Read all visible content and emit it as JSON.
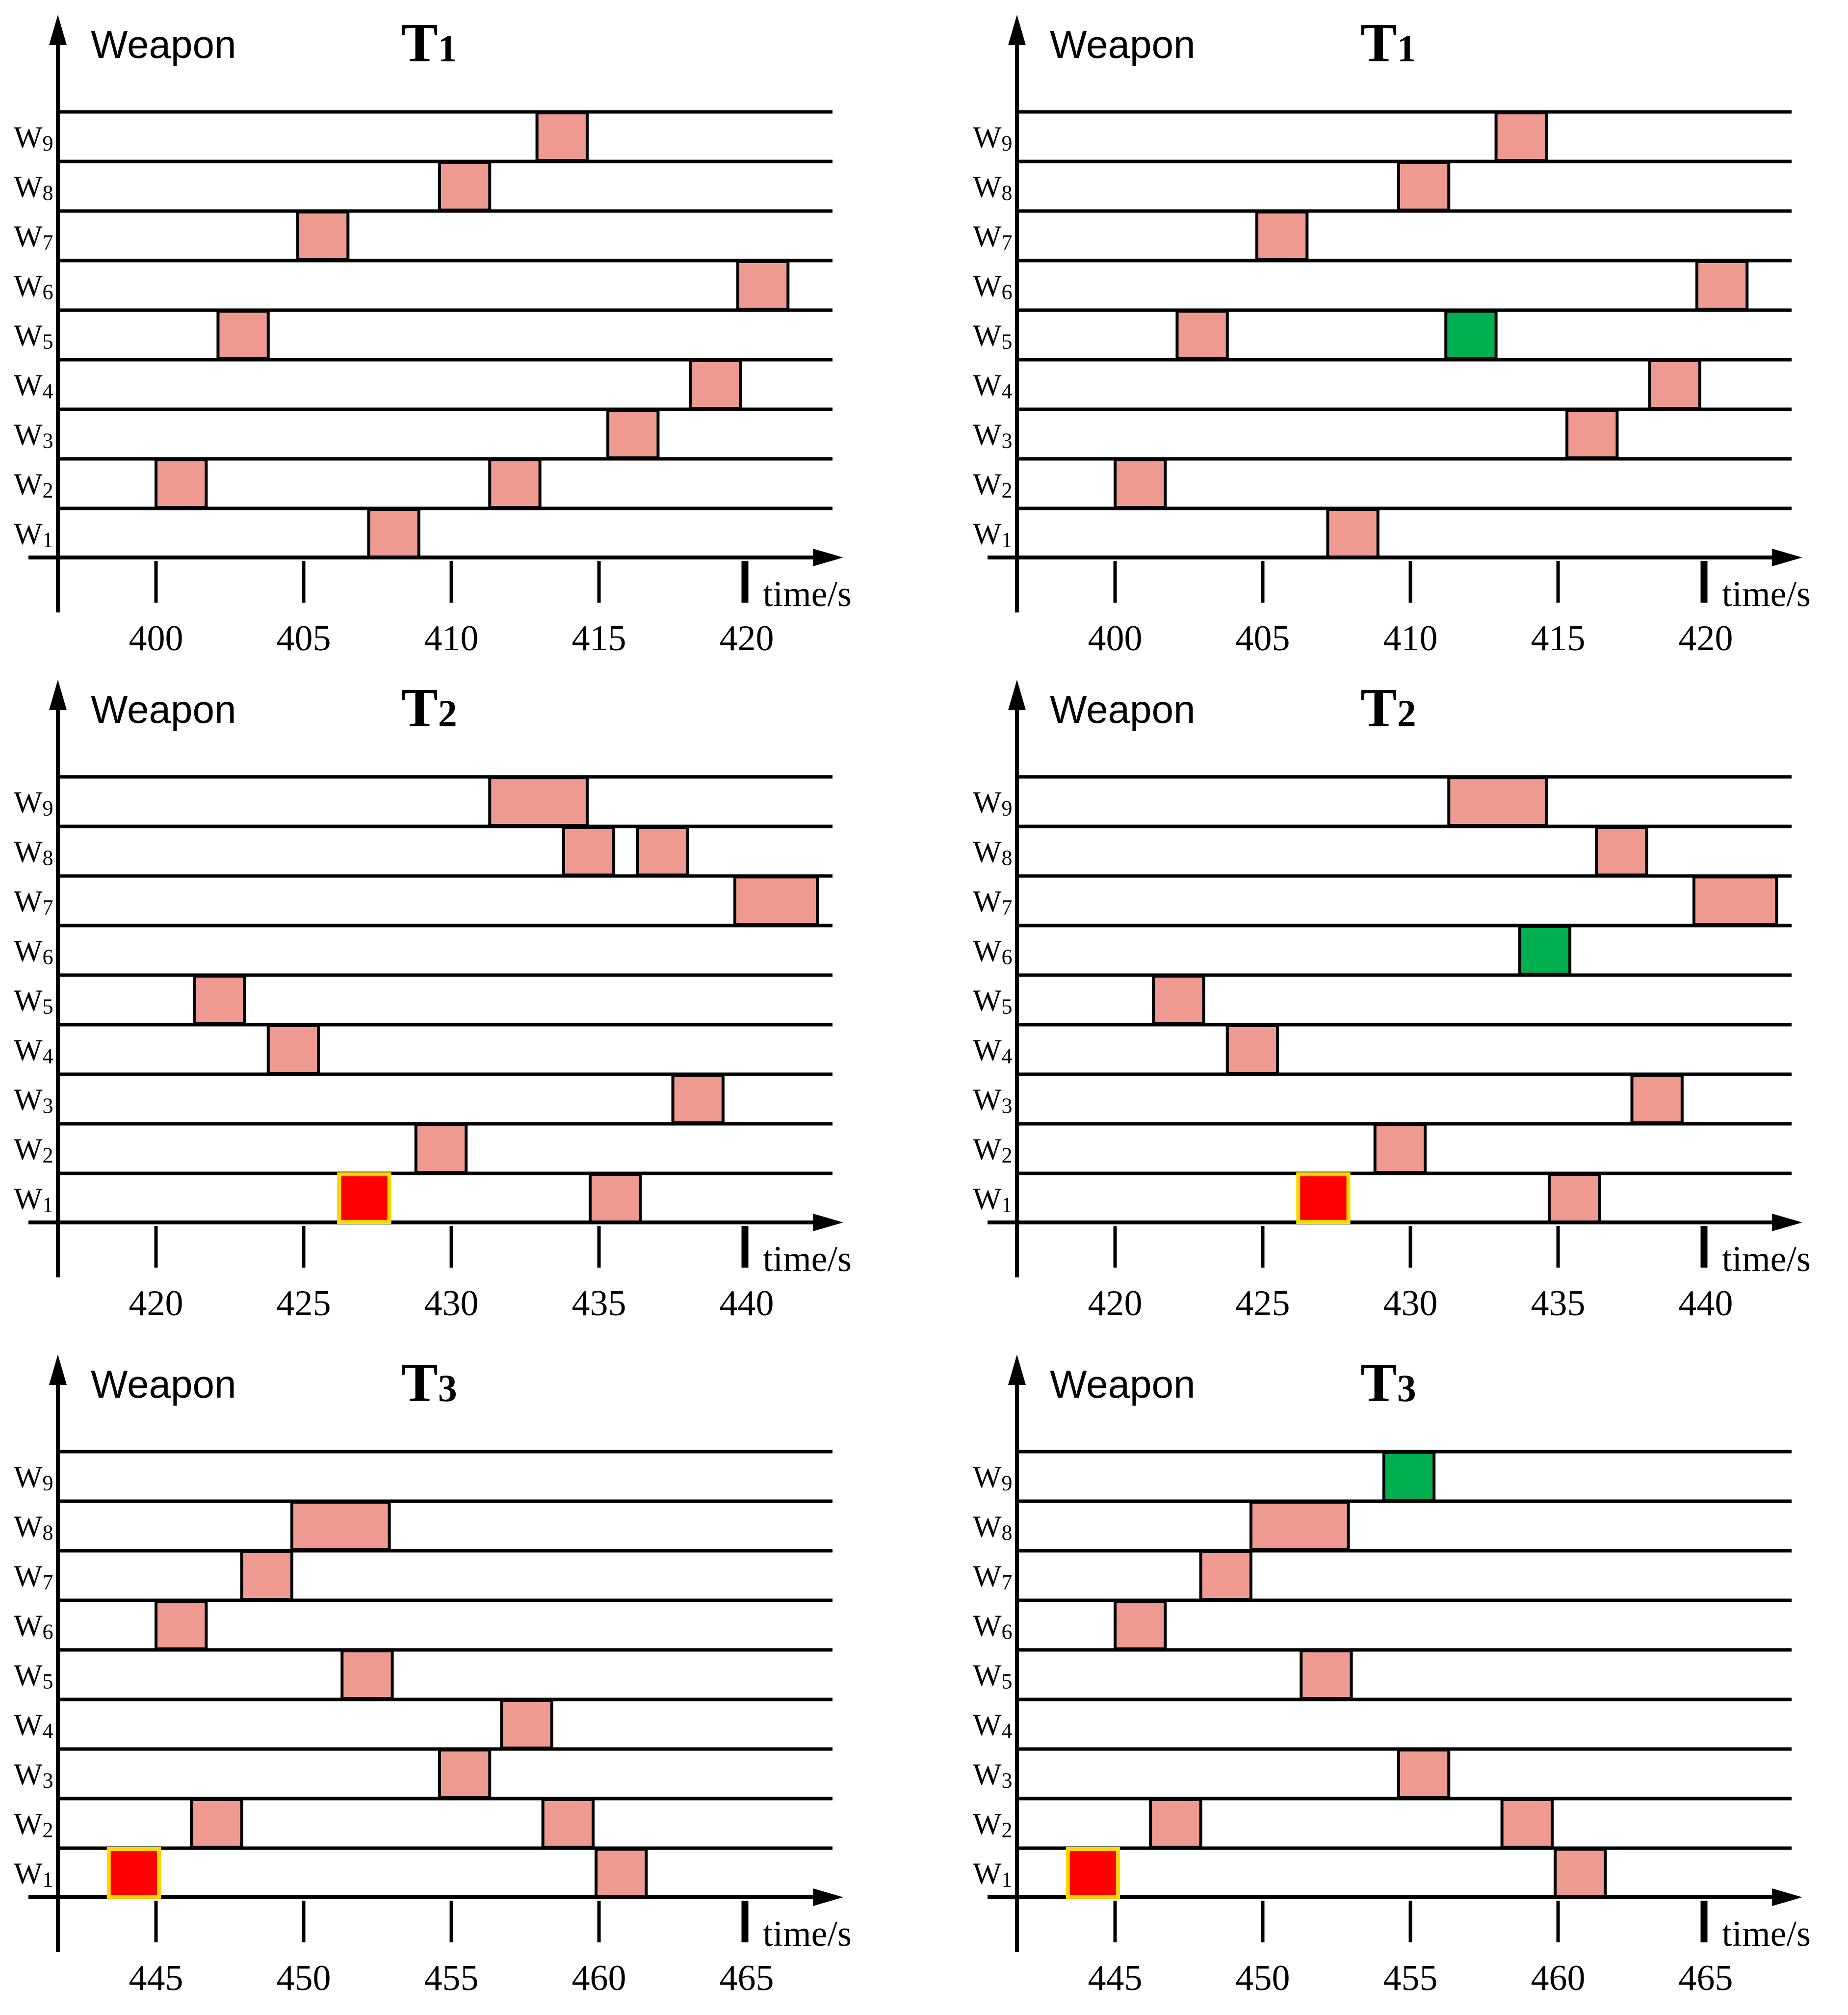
{
  "palette": {
    "task": "#ef9a90",
    "green": "#00b050",
    "red": "#ff0000",
    "red_border": "#ffd700",
    "axis": "#000000"
  },
  "chart_data": [
    {
      "type": "timeline",
      "title": "T",
      "title_sub": "1",
      "ylabel": "Weapon",
      "xlabel": "time/s",
      "x_ticks": [
        400,
        405,
        410,
        415,
        420
      ],
      "rows": [
        "W1",
        "W2",
        "W3",
        "W4",
        "W5",
        "W6",
        "W7",
        "W8",
        "W9"
      ],
      "xlim": [
        396.7,
        422.9
      ],
      "tasks": [
        {
          "row": "W1",
          "start": 407.2,
          "end": 408.9,
          "kind": "normal"
        },
        {
          "row": "W2",
          "start": 400.0,
          "end": 401.7,
          "kind": "normal"
        },
        {
          "row": "W2",
          "start": 411.3,
          "end": 413.0,
          "kind": "normal"
        },
        {
          "row": "W3",
          "start": 415.3,
          "end": 417.0,
          "kind": "normal"
        },
        {
          "row": "W4",
          "start": 418.1,
          "end": 419.8,
          "kind": "normal"
        },
        {
          "row": "W5",
          "start": 402.1,
          "end": 403.8,
          "kind": "normal"
        },
        {
          "row": "W6",
          "start": 419.7,
          "end": 421.4,
          "kind": "normal"
        },
        {
          "row": "W7",
          "start": 404.8,
          "end": 406.5,
          "kind": "normal"
        },
        {
          "row": "W8",
          "start": 409.6,
          "end": 411.3,
          "kind": "normal"
        },
        {
          "row": "W9",
          "start": 412.9,
          "end": 414.6,
          "kind": "normal"
        }
      ]
    },
    {
      "type": "timeline",
      "title": "T",
      "title_sub": "1",
      "ylabel": "Weapon",
      "xlabel": "time/s",
      "x_ticks": [
        400,
        405,
        410,
        415,
        420
      ],
      "rows": [
        "W1",
        "W2",
        "W3",
        "W4",
        "W5",
        "W6",
        "W7",
        "W8",
        "W9"
      ],
      "xlim": [
        396.7,
        422.9
      ],
      "tasks": [
        {
          "row": "W1",
          "start": 407.2,
          "end": 408.9,
          "kind": "normal"
        },
        {
          "row": "W2",
          "start": 400.0,
          "end": 401.7,
          "kind": "normal"
        },
        {
          "row": "W3",
          "start": 415.3,
          "end": 417.0,
          "kind": "normal"
        },
        {
          "row": "W4",
          "start": 418.1,
          "end": 419.8,
          "kind": "normal"
        },
        {
          "row": "W5",
          "start": 402.1,
          "end": 403.8,
          "kind": "normal"
        },
        {
          "row": "W5",
          "start": 411.2,
          "end": 412.9,
          "kind": "green"
        },
        {
          "row": "W6",
          "start": 419.7,
          "end": 421.4,
          "kind": "normal"
        },
        {
          "row": "W7",
          "start": 404.8,
          "end": 406.5,
          "kind": "normal"
        },
        {
          "row": "W8",
          "start": 409.6,
          "end": 411.3,
          "kind": "normal"
        },
        {
          "row": "W9",
          "start": 412.9,
          "end": 414.6,
          "kind": "normal"
        }
      ]
    },
    {
      "type": "timeline",
      "title": "T",
      "title_sub": "2",
      "ylabel": "Weapon",
      "xlabel": "time/s",
      "x_ticks": [
        420,
        425,
        430,
        435,
        440
      ],
      "rows": [
        "W1",
        "W2",
        "W3",
        "W4",
        "W5",
        "W6",
        "W7",
        "W8",
        "W9"
      ],
      "xlim": [
        416.7,
        443.0
      ],
      "tasks": [
        {
          "row": "W1",
          "start": 426.2,
          "end": 427.9,
          "kind": "red"
        },
        {
          "row": "W1",
          "start": 434.7,
          "end": 436.4,
          "kind": "normal"
        },
        {
          "row": "W2",
          "start": 428.8,
          "end": 430.5,
          "kind": "normal"
        },
        {
          "row": "W3",
          "start": 437.5,
          "end": 439.2,
          "kind": "normal"
        },
        {
          "row": "W4",
          "start": 423.8,
          "end": 425.5,
          "kind": "normal"
        },
        {
          "row": "W5",
          "start": 421.3,
          "end": 423.0,
          "kind": "normal"
        },
        {
          "row": "W7",
          "start": 439.6,
          "end": 442.4,
          "kind": "normal"
        },
        {
          "row": "W8",
          "start": 433.8,
          "end": 435.5,
          "kind": "normal"
        },
        {
          "row": "W8",
          "start": 436.3,
          "end": 438.0,
          "kind": "normal"
        },
        {
          "row": "W9",
          "start": 431.3,
          "end": 434.6,
          "kind": "normal"
        }
      ]
    },
    {
      "type": "timeline",
      "title": "T",
      "title_sub": "2",
      "ylabel": "Weapon",
      "xlabel": "time/s",
      "x_ticks": [
        420,
        425,
        430,
        435,
        440
      ],
      "rows": [
        "W1",
        "W2",
        "W3",
        "W4",
        "W5",
        "W6",
        "W7",
        "W8",
        "W9"
      ],
      "xlim": [
        416.7,
        443.0
      ],
      "tasks": [
        {
          "row": "W1",
          "start": 426.2,
          "end": 427.9,
          "kind": "red"
        },
        {
          "row": "W1",
          "start": 434.7,
          "end": 436.4,
          "kind": "normal"
        },
        {
          "row": "W2",
          "start": 428.8,
          "end": 430.5,
          "kind": "normal"
        },
        {
          "row": "W3",
          "start": 437.5,
          "end": 439.2,
          "kind": "normal"
        },
        {
          "row": "W4",
          "start": 423.8,
          "end": 425.5,
          "kind": "normal"
        },
        {
          "row": "W5",
          "start": 421.3,
          "end": 423.0,
          "kind": "normal"
        },
        {
          "row": "W6",
          "start": 433.7,
          "end": 435.4,
          "kind": "green"
        },
        {
          "row": "W7",
          "start": 439.6,
          "end": 442.4,
          "kind": "normal"
        },
        {
          "row": "W8",
          "start": 436.3,
          "end": 438.0,
          "kind": "normal"
        },
        {
          "row": "W9",
          "start": 431.3,
          "end": 434.6,
          "kind": "normal"
        }
      ]
    },
    {
      "type": "timeline",
      "title": "T",
      "title_sub": "3",
      "ylabel": "Weapon",
      "xlabel": "time/s",
      "x_ticks": [
        445,
        450,
        455,
        460,
        465
      ],
      "rows": [
        "W1",
        "W2",
        "W3",
        "W4",
        "W5",
        "W6",
        "W7",
        "W8",
        "W9"
      ],
      "xlim": [
        441.7,
        468.0
      ],
      "tasks": [
        {
          "row": "W1",
          "start": 443.4,
          "end": 445.1,
          "kind": "red"
        },
        {
          "row": "W1",
          "start": 459.9,
          "end": 461.6,
          "kind": "normal"
        },
        {
          "row": "W2",
          "start": 446.2,
          "end": 447.9,
          "kind": "normal"
        },
        {
          "row": "W2",
          "start": 458.1,
          "end": 459.8,
          "kind": "normal"
        },
        {
          "row": "W3",
          "start": 454.6,
          "end": 456.3,
          "kind": "normal"
        },
        {
          "row": "W4",
          "start": 456.7,
          "end": 458.4,
          "kind": "normal"
        },
        {
          "row": "W5",
          "start": 451.3,
          "end": 453.0,
          "kind": "normal"
        },
        {
          "row": "W6",
          "start": 445.0,
          "end": 446.7,
          "kind": "normal"
        },
        {
          "row": "W7",
          "start": 447.9,
          "end": 449.6,
          "kind": "normal"
        },
        {
          "row": "W8",
          "start": 449.6,
          "end": 452.9,
          "kind": "normal"
        }
      ]
    },
    {
      "type": "timeline",
      "title": "T",
      "title_sub": "3",
      "ylabel": "Weapon",
      "xlabel": "time/s",
      "x_ticks": [
        445,
        450,
        455,
        460,
        465
      ],
      "rows": [
        "W1",
        "W2",
        "W3",
        "W4",
        "W5",
        "W6",
        "W7",
        "W8",
        "W9"
      ],
      "xlim": [
        441.7,
        468.0
      ],
      "tasks": [
        {
          "row": "W1",
          "start": 443.4,
          "end": 445.1,
          "kind": "red"
        },
        {
          "row": "W1",
          "start": 459.9,
          "end": 461.6,
          "kind": "normal"
        },
        {
          "row": "W2",
          "start": 446.2,
          "end": 447.9,
          "kind": "normal"
        },
        {
          "row": "W2",
          "start": 458.1,
          "end": 459.8,
          "kind": "normal"
        },
        {
          "row": "W3",
          "start": 454.6,
          "end": 456.3,
          "kind": "normal"
        },
        {
          "row": "W5",
          "start": 451.3,
          "end": 453.0,
          "kind": "normal"
        },
        {
          "row": "W6",
          "start": 445.0,
          "end": 446.7,
          "kind": "normal"
        },
        {
          "row": "W7",
          "start": 447.9,
          "end": 449.6,
          "kind": "normal"
        },
        {
          "row": "W8",
          "start": 449.6,
          "end": 452.9,
          "kind": "normal"
        },
        {
          "row": "W9",
          "start": 454.1,
          "end": 455.8,
          "kind": "green"
        }
      ]
    }
  ]
}
